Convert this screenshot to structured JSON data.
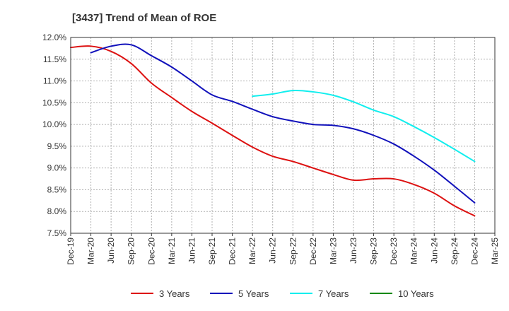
{
  "chart_data": {
    "type": "line",
    "title": "[3437]  Trend of Mean of ROE",
    "xlabel": "",
    "ylabel": "",
    "ylim": [
      7.5,
      12.0
    ],
    "y_ticks": [
      "12.0%",
      "11.5%",
      "11.0%",
      "10.5%",
      "10.0%",
      "9.5%",
      "9.0%",
      "8.5%",
      "8.0%",
      "7.5%"
    ],
    "y_tick_values": [
      12.0,
      11.5,
      11.0,
      10.5,
      10.0,
      9.5,
      9.0,
      8.5,
      8.0,
      7.5
    ],
    "categories": [
      "Dec-19",
      "Mar-20",
      "Jun-20",
      "Sep-20",
      "Dec-20",
      "Mar-21",
      "Jun-21",
      "Sep-21",
      "Dec-21",
      "Mar-22",
      "Jun-22",
      "Sep-22",
      "Dec-22",
      "Mar-23",
      "Jun-23",
      "Sep-23",
      "Dec-23",
      "Mar-24",
      "Jun-24",
      "Sep-24",
      "Dec-24",
      "Mar-25"
    ],
    "grid": true,
    "legend_position": "bottom",
    "series": [
      {
        "name": "3 Years",
        "color": "#dd1111",
        "values": [
          11.77,
          11.8,
          11.68,
          11.4,
          10.95,
          10.62,
          10.3,
          10.03,
          9.75,
          9.48,
          9.27,
          9.15,
          9.0,
          8.85,
          8.72,
          8.75,
          8.75,
          8.62,
          8.42,
          8.13,
          7.9,
          null
        ]
      },
      {
        "name": "5 Years",
        "color": "#1111bb",
        "values": [
          null,
          11.65,
          11.8,
          11.83,
          11.58,
          11.32,
          11.0,
          10.68,
          10.53,
          10.35,
          10.18,
          10.08,
          10.0,
          9.98,
          9.9,
          9.75,
          9.55,
          9.27,
          8.95,
          8.58,
          8.2,
          null
        ]
      },
      {
        "name": "7 Years",
        "color": "#11eeee",
        "values": [
          null,
          null,
          null,
          null,
          null,
          null,
          null,
          null,
          null,
          10.65,
          10.7,
          10.78,
          10.75,
          10.67,
          10.52,
          10.33,
          10.18,
          9.95,
          9.7,
          9.43,
          9.15,
          null
        ]
      },
      {
        "name": "10 Years",
        "color": "#118811",
        "values": [
          null,
          null,
          null,
          null,
          null,
          null,
          null,
          null,
          null,
          null,
          null,
          null,
          null,
          null,
          null,
          null,
          null,
          null,
          null,
          null,
          null,
          null
        ]
      }
    ]
  }
}
